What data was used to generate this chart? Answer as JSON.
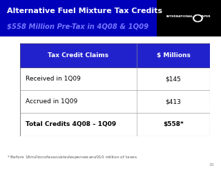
{
  "title_line1": "Alternative Fuel Mixture Tax Credits",
  "title_line2": "$558 Million Pre-Tax in 4Q08 & 1Q09",
  "header_col1": "Tax Credit Claims",
  "header_col2": "$ Millions",
  "rows": [
    {
      "label": "Received in 1Q09",
      "value": "$145",
      "bold": false
    },
    {
      "label": "Accrued in 1Q09",
      "value": "$413",
      "bold": false
    },
    {
      "label": "Total Credits 4Q08 – 1Q09",
      "value": "$558*",
      "bold": true
    }
  ],
  "footnote": "* Before $18 million of associated expenses and $210 million of taxes",
  "page_number": "25",
  "title_bg": "#0000BB",
  "logo_bg": "#000000",
  "title_text_color1": "#FFFFFF",
  "title_text_color2": "#7777FF",
  "table_header_bg": "#2222CC",
  "table_header_fg": "#FFFFFF",
  "border_color": "#888888",
  "slide_bg": "#FFFFFF",
  "footnote_color": "#555555"
}
